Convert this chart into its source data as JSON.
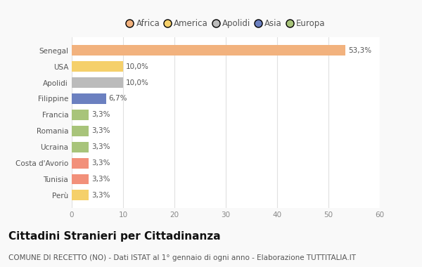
{
  "categories": [
    "Senegal",
    "USA",
    "Apolidi",
    "Filippine",
    "Francia",
    "Romania",
    "Ucraina",
    "Costa d'Avorio",
    "Tunisia",
    "Perù"
  ],
  "values": [
    53.3,
    10.0,
    10.0,
    6.7,
    3.3,
    3.3,
    3.3,
    3.3,
    3.3,
    3.3
  ],
  "labels": [
    "53,3%",
    "10,0%",
    "10,0%",
    "6,7%",
    "3,3%",
    "3,3%",
    "3,3%",
    "3,3%",
    "3,3%",
    "3,3%"
  ],
  "colors": [
    "#F2B27E",
    "#F5D06A",
    "#BBBBBB",
    "#6B80C0",
    "#A8C47A",
    "#A8C47A",
    "#A8C47A",
    "#F2907A",
    "#F2907A",
    "#F5D06A"
  ],
  "legend_labels": [
    "Africa",
    "America",
    "Apolidi",
    "Asia",
    "Europa"
  ],
  "legend_colors": [
    "#F2B27E",
    "#F5D06A",
    "#BBBBBB",
    "#6B80C0",
    "#A8C47A"
  ],
  "title": "Cittadini Stranieri per Cittadinanza",
  "subtitle": "COMUNE DI RECETTO (NO) - Dati ISTAT al 1° gennaio di ogni anno - Elaborazione TUTTITALIA.IT",
  "xlim": [
    0,
    60
  ],
  "xticks": [
    0,
    10,
    20,
    30,
    40,
    50,
    60
  ],
  "bg_color": "#f9f9f9",
  "plot_bg_color": "#ffffff",
  "title_fontsize": 11,
  "subtitle_fontsize": 7.5,
  "label_fontsize": 7.5,
  "tick_fontsize": 7.5,
  "legend_fontsize": 8.5,
  "ytick_fontsize": 7.5
}
